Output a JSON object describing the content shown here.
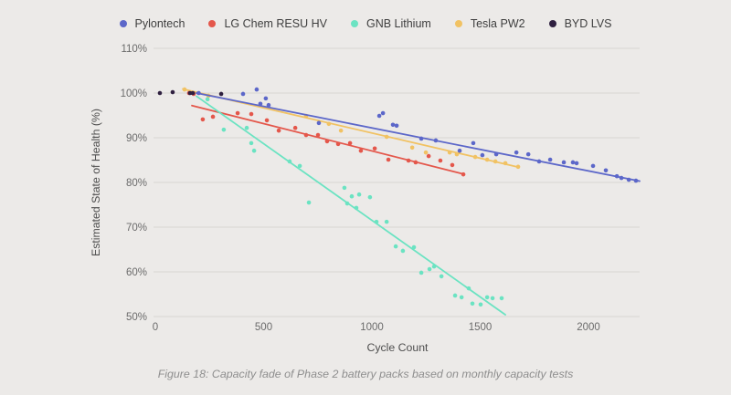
{
  "figure": {
    "caption": "Figure 18: Capacity fade of Phase 2 battery packs based on monthly capacity tests"
  },
  "colors": {
    "background": "#ECEAE8",
    "grid": "#D8D5D2",
    "tick_text": "#6B6B6B",
    "axis_title_text": "#4E4E4E",
    "legend_text": "#3E3E3E",
    "caption_text": "#8E8E8E"
  },
  "chart_data": {
    "type": "scatter",
    "title": "",
    "xlabel": "Cycle Count",
    "ylabel": "Estimated State of Health (%)",
    "xlim": [
      0,
      2236
    ],
    "ylim": [
      50,
      110
    ],
    "grid": true,
    "legend_position": "top",
    "x_ticks": [
      {
        "value": 0,
        "label": "0"
      },
      {
        "value": 500,
        "label": "500"
      },
      {
        "value": 1000,
        "label": "1000"
      },
      {
        "value": 1500,
        "label": "1500"
      },
      {
        "value": 2000,
        "label": "2000"
      }
    ],
    "y_ticks": [
      {
        "value": 110,
        "label": "110%"
      },
      {
        "value": 100,
        "label": "100%"
      },
      {
        "value": 90,
        "label": "90%"
      },
      {
        "value": 80,
        "label": "80%"
      },
      {
        "value": 70,
        "label": "70%"
      },
      {
        "value": 60,
        "label": "60%"
      },
      {
        "value": 50,
        "label": "50%"
      }
    ],
    "series": [
      {
        "id": "pylontech",
        "name": "Pylontech",
        "color": "#5C67C9",
        "trend": [
          [
            190,
            100.0
          ],
          [
            2236,
            80.3
          ]
        ],
        "points": [
          [
            200,
            100.0
          ],
          [
            405,
            99.8
          ],
          [
            468,
            100.8
          ],
          [
            485,
            97.6
          ],
          [
            510,
            98.8
          ],
          [
            523,
            97.3
          ],
          [
            755,
            93.3
          ],
          [
            1034,
            94.9
          ],
          [
            1051,
            95.5
          ],
          [
            1097,
            92.9
          ],
          [
            1114,
            92.7
          ],
          [
            1228,
            89.8
          ],
          [
            1295,
            89.4
          ],
          [
            1405,
            87.1
          ],
          [
            1468,
            88.8
          ],
          [
            1510,
            86.1
          ],
          [
            1574,
            86.3
          ],
          [
            1667,
            86.7
          ],
          [
            1722,
            86.3
          ],
          [
            1772,
            84.7
          ],
          [
            1823,
            85.1
          ],
          [
            1886,
            84.5
          ],
          [
            1928,
            84.5
          ],
          [
            1945,
            84.3
          ],
          [
            2021,
            83.7
          ],
          [
            2080,
            82.7
          ],
          [
            2131,
            81.4
          ],
          [
            2152,
            81.0
          ],
          [
            2186,
            80.6
          ],
          [
            2219,
            80.4
          ]
        ]
      },
      {
        "id": "lg-chem-resu-hv",
        "name": "LG Chem RESU HV",
        "color": "#E4574B",
        "trend": [
          [
            169,
            97.2
          ],
          [
            1422,
            81.9
          ]
        ],
        "points": [
          [
            156,
            100.0
          ],
          [
            177,
            99.8
          ],
          [
            219,
            94.1
          ],
          [
            266,
            94.7
          ],
          [
            380,
            95.5
          ],
          [
            443,
            95.3
          ],
          [
            515,
            93.9
          ],
          [
            570,
            91.6
          ],
          [
            646,
            92.2
          ],
          [
            696,
            90.6
          ],
          [
            751,
            90.6
          ],
          [
            793,
            89.2
          ],
          [
            844,
            88.6
          ],
          [
            899,
            88.8
          ],
          [
            949,
            87.1
          ],
          [
            1013,
            87.6
          ],
          [
            1076,
            85.1
          ],
          [
            1169,
            84.9
          ],
          [
            1202,
            84.5
          ],
          [
            1262,
            85.9
          ],
          [
            1316,
            84.9
          ],
          [
            1371,
            83.9
          ],
          [
            1422,
            81.8
          ]
        ]
      },
      {
        "id": "gnb-lithium",
        "name": "GNB Lithium",
        "color": "#6BE3C2",
        "trend": [
          [
            190,
            99.3
          ],
          [
            1616,
            50.4
          ]
        ],
        "points": [
          [
            241,
            98.6
          ],
          [
            316,
            91.8
          ],
          [
            422,
            92.2
          ],
          [
            443,
            88.8
          ],
          [
            456,
            87.1
          ],
          [
            620,
            84.7
          ],
          [
            667,
            83.7
          ],
          [
            709,
            75.5
          ],
          [
            873,
            78.8
          ],
          [
            886,
            75.3
          ],
          [
            907,
            76.9
          ],
          [
            928,
            74.3
          ],
          [
            941,
            77.3
          ],
          [
            991,
            76.7
          ],
          [
            1021,
            71.2
          ],
          [
            1068,
            71.2
          ],
          [
            1110,
            65.7
          ],
          [
            1143,
            64.7
          ],
          [
            1194,
            65.5
          ],
          [
            1228,
            59.8
          ],
          [
            1266,
            60.6
          ],
          [
            1287,
            61.2
          ],
          [
            1321,
            59.0
          ],
          [
            1384,
            54.7
          ],
          [
            1414,
            54.3
          ],
          [
            1447,
            56.3
          ],
          [
            1464,
            52.9
          ],
          [
            1502,
            52.7
          ],
          [
            1532,
            54.3
          ],
          [
            1557,
            54.1
          ],
          [
            1599,
            54.1
          ]
        ]
      },
      {
        "id": "tesla-pw2",
        "name": "Tesla PW2",
        "color": "#F1C263",
        "trend": [
          [
            127,
            100.9
          ],
          [
            1679,
            83.4
          ]
        ],
        "points": [
          [
            135,
            100.8
          ],
          [
            245,
            99.4
          ],
          [
            696,
            94.9
          ],
          [
            801,
            93.1
          ],
          [
            857,
            91.6
          ],
          [
            1068,
            90.2
          ],
          [
            1186,
            87.8
          ],
          [
            1249,
            86.7
          ],
          [
            1359,
            86.7
          ],
          [
            1392,
            86.3
          ],
          [
            1477,
            85.7
          ],
          [
            1532,
            85.1
          ],
          [
            1570,
            84.7
          ],
          [
            1616,
            84.3
          ],
          [
            1675,
            83.5
          ]
        ]
      },
      {
        "id": "byd-lvs",
        "name": "BYD LVS",
        "color": "#2F2040",
        "trend": null,
        "points": [
          [
            21,
            100.0
          ],
          [
            80,
            100.2
          ],
          [
            160,
            100.0
          ],
          [
            173,
            100.0
          ],
          [
            304,
            99.8
          ]
        ]
      }
    ]
  }
}
